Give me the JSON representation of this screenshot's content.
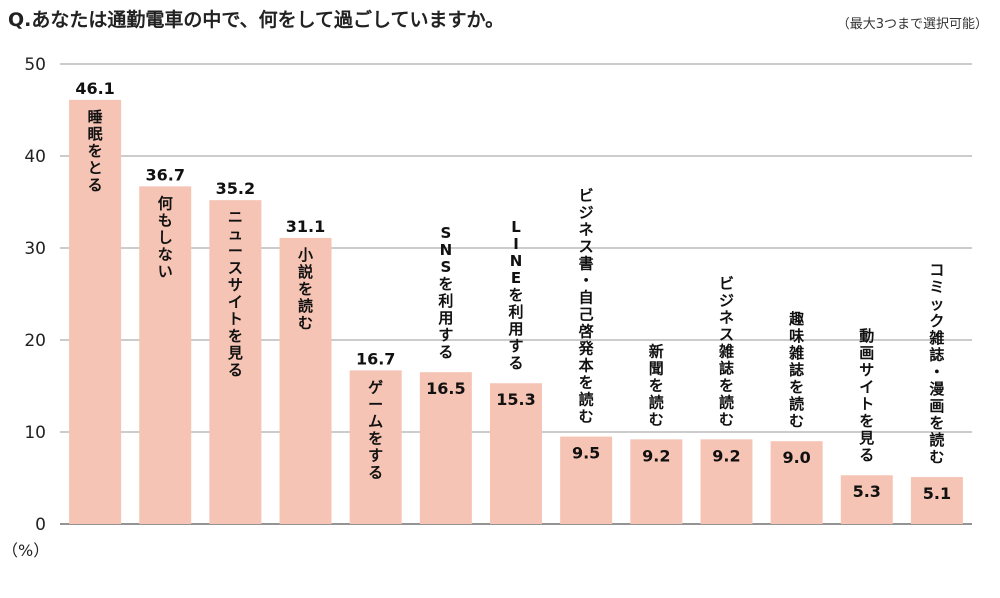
{
  "chart_data": {
    "type": "bar",
    "title": "Q.あなたは通勤電車の中で、何をして過ごしていますか。",
    "note": "（最大3つまで選択可能）",
    "ylabel": "（%）",
    "ylim": [
      0,
      50
    ],
    "yticks": [
      0,
      10,
      20,
      30,
      40,
      50
    ],
    "grid": true,
    "bar_color": "#f5c4b4",
    "categories": [
      "睡眠をとる",
      "何もしない",
      "ニュースサイトを見る",
      "小説を読む",
      "ゲームをする",
      "SNSを利用する",
      "LINEを利用する",
      "ビジネス書・自己啓発本を読む",
      "新聞を読む",
      "ビジネス雑誌を読む",
      "趣味雑誌を読む",
      "動画サイトを見る",
      "コミック雑誌・漫画を読む"
    ],
    "values": [
      46.1,
      36.7,
      35.2,
      31.1,
      16.7,
      16.5,
      15.3,
      9.5,
      9.2,
      9.2,
      9.0,
      5.3,
      5.1
    ],
    "value_labels": [
      "46.1",
      "36.7",
      "35.2",
      "31.1",
      "16.7",
      "16.5",
      "15.3",
      "9.5",
      "9.2",
      "9.2",
      "9.0",
      "5.3",
      "5.1"
    ]
  }
}
